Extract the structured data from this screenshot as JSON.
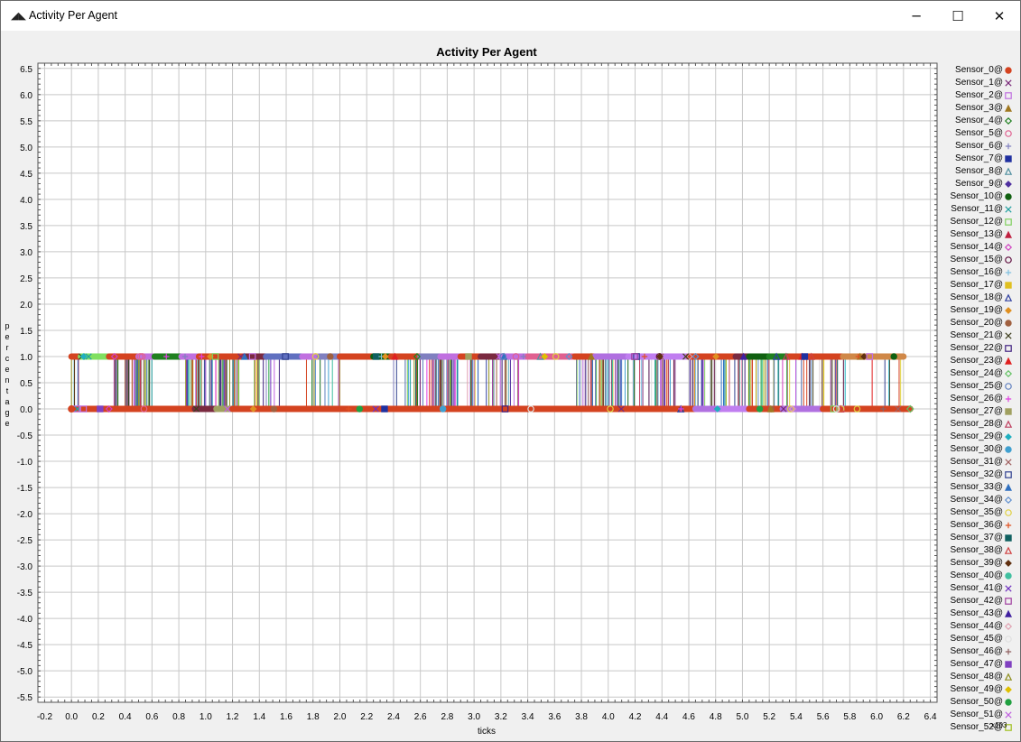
{
  "window": {
    "title": "Activity Per Agent",
    "app_icon": "chart-app-icon",
    "buttons": {
      "minimize": "─",
      "maximize": "☐",
      "close": "✕"
    }
  },
  "chart_data": {
    "type": "line",
    "title": "Activity Per Agent",
    "xlabel": "ticks",
    "ylabel": "percentage",
    "xlim": [
      -0.25,
      6.45
    ],
    "ylim": [
      -5.6,
      6.6
    ],
    "x_ticks": [
      "-0.2",
      "0.0",
      "0.2",
      "0.4",
      "0.6",
      "0.8",
      "1.0",
      "1.2",
      "1.4",
      "1.6",
      "1.8",
      "2.0",
      "2.2",
      "2.4",
      "2.6",
      "2.8",
      "3.0",
      "3.2",
      "3.4",
      "3.6",
      "3.8",
      "4.0",
      "4.2",
      "4.4",
      "4.6",
      "4.8",
      "5.0",
      "5.2",
      "5.4",
      "5.6",
      "5.8",
      "6.0",
      "6.2",
      "6.4"
    ],
    "y_ticks": [
      "6.5",
      "6.0",
      "5.5",
      "5.0",
      "4.5",
      "4.0",
      "3.5",
      "3.0",
      "2.5",
      "2.0",
      "1.5",
      "1.0",
      "0.5",
      "0.0",
      "-0.5",
      "-1.0",
      "-1.5",
      "-2.0",
      "-2.5",
      "-3.0",
      "-3.5",
      "-4.0",
      "-4.5",
      "-5.0",
      "-5.5"
    ],
    "x_multiplier_label": "x10",
    "x_multiplier_exponent": "3",
    "grid": true,
    "legend_position": "right",
    "value_levels": [
      0.0,
      1.0
    ],
    "x_range_active": [
      0.0,
      6.25
    ],
    "series": [
      {
        "name": "Sensor_0@",
        "color": "#d44320",
        "marker": "circle"
      },
      {
        "name": "Sensor_1@",
        "color": "#7a2a7a",
        "marker": "x"
      },
      {
        "name": "Sensor_2@",
        "color": "#c070e0",
        "marker": "square-open"
      },
      {
        "name": "Sensor_3@",
        "color": "#a07820",
        "marker": "triangle"
      },
      {
        "name": "Sensor_4@",
        "color": "#208020",
        "marker": "diamond-open"
      },
      {
        "name": "Sensor_5@",
        "color": "#e06090",
        "marker": "circle-open"
      },
      {
        "name": "Sensor_6@",
        "color": "#8080c0",
        "marker": "plus"
      },
      {
        "name": "Sensor_7@",
        "color": "#2030a0",
        "marker": "square"
      },
      {
        "name": "Sensor_8@",
        "color": "#5090a0",
        "marker": "triangle-open"
      },
      {
        "name": "Sensor_9@",
        "color": "#5030a0",
        "marker": "diamond"
      },
      {
        "name": "Sensor_10@",
        "color": "#106010",
        "marker": "circle"
      },
      {
        "name": "Sensor_11@",
        "color": "#20a0a0",
        "marker": "x"
      },
      {
        "name": "Sensor_12@",
        "color": "#80d060",
        "marker": "square-open"
      },
      {
        "name": "Sensor_13@",
        "color": "#c02040",
        "marker": "triangle"
      },
      {
        "name": "Sensor_14@",
        "color": "#d040c0",
        "marker": "diamond-open"
      },
      {
        "name": "Sensor_15@",
        "color": "#601040",
        "marker": "circle-open"
      },
      {
        "name": "Sensor_16@",
        "color": "#80c0e0",
        "marker": "plus"
      },
      {
        "name": "Sensor_17@",
        "color": "#e0c020",
        "marker": "square"
      },
      {
        "name": "Sensor_18@",
        "color": "#3040a0",
        "marker": "triangle-open"
      },
      {
        "name": "Sensor_19@",
        "color": "#e09020",
        "marker": "diamond"
      },
      {
        "name": "Sensor_20@",
        "color": "#a06040",
        "marker": "circle"
      },
      {
        "name": "Sensor_21@",
        "color": "#404020",
        "marker": "x"
      },
      {
        "name": "Sensor_22@",
        "color": "#402080",
        "marker": "square-open"
      },
      {
        "name": "Sensor_23@",
        "color": "#e02020",
        "marker": "triangle"
      },
      {
        "name": "Sensor_24@",
        "color": "#60c060",
        "marker": "diamond-open"
      },
      {
        "name": "Sensor_25@",
        "color": "#6080c0",
        "marker": "circle-open"
      },
      {
        "name": "Sensor_26@",
        "color": "#e040e0",
        "marker": "plus"
      },
      {
        "name": "Sensor_27@",
        "color": "#a0a060",
        "marker": "square"
      },
      {
        "name": "Sensor_28@",
        "color": "#c04060",
        "marker": "triangle-open"
      },
      {
        "name": "Sensor_29@",
        "color": "#20b0c0",
        "marker": "diamond"
      },
      {
        "name": "Sensor_30@",
        "color": "#40a0d0",
        "marker": "circle"
      },
      {
        "name": "Sensor_31@",
        "color": "#a06060",
        "marker": "x"
      },
      {
        "name": "Sensor_32@",
        "color": "#304090",
        "marker": "square-open"
      },
      {
        "name": "Sensor_33@",
        "color": "#3070c0",
        "marker": "triangle"
      },
      {
        "name": "Sensor_34@",
        "color": "#6090d0",
        "marker": "diamond-open"
      },
      {
        "name": "Sensor_35@",
        "color": "#e0d040",
        "marker": "circle-open"
      },
      {
        "name": "Sensor_36@",
        "color": "#e05020",
        "marker": "plus"
      },
      {
        "name": "Sensor_37@",
        "color": "#106060",
        "marker": "square"
      },
      {
        "name": "Sensor_38@",
        "color": "#d04040",
        "marker": "triangle-open"
      },
      {
        "name": "Sensor_39@",
        "color": "#603010",
        "marker": "diamond"
      },
      {
        "name": "Sensor_40@",
        "color": "#40c0a0",
        "marker": "circle"
      },
      {
        "name": "Sensor_41@",
        "color": "#7030c0",
        "marker": "x"
      },
      {
        "name": "Sensor_42@",
        "color": "#a040a0",
        "marker": "square-open"
      },
      {
        "name": "Sensor_43@",
        "color": "#4020a0",
        "marker": "triangle"
      },
      {
        "name": "Sensor_44@",
        "color": "#e0a0b0",
        "marker": "diamond-open"
      },
      {
        "name": "Sensor_45@",
        "color": "#e0e0e0",
        "marker": "circle-open"
      },
      {
        "name": "Sensor_46@",
        "color": "#906060",
        "marker": "plus"
      },
      {
        "name": "Sensor_47@",
        "color": "#8040c0",
        "marker": "square"
      },
      {
        "name": "Sensor_48@",
        "color": "#909020",
        "marker": "triangle-open"
      },
      {
        "name": "Sensor_49@",
        "color": "#e0c000",
        "marker": "diamond"
      },
      {
        "name": "Sensor_50@",
        "color": "#20a040",
        "marker": "circle"
      },
      {
        "name": "Sensor_51@",
        "color": "#c060e0",
        "marker": "x"
      },
      {
        "name": "Sensor_52@",
        "color": "#a0c020",
        "marker": "square-open"
      }
    ],
    "top_line_segments": [
      {
        "x0": 0.0,
        "x1": 0.07,
        "color": "#d44320"
      },
      {
        "x0": 0.07,
        "x1": 0.28,
        "color": "#80e060"
      },
      {
        "x0": 0.28,
        "x1": 0.5,
        "color": "#d44320"
      },
      {
        "x0": 0.5,
        "x1": 0.62,
        "color": "#c070e0"
      },
      {
        "x0": 0.62,
        "x1": 0.82,
        "color": "#208020"
      },
      {
        "x0": 0.82,
        "x1": 0.95,
        "color": "#c070e0"
      },
      {
        "x0": 0.95,
        "x1": 1.3,
        "color": "#d44320"
      },
      {
        "x0": 1.3,
        "x1": 1.45,
        "color": "#7a2a40"
      },
      {
        "x0": 1.45,
        "x1": 1.72,
        "color": "#6070c0"
      },
      {
        "x0": 1.72,
        "x1": 1.85,
        "color": "#c070e0"
      },
      {
        "x0": 1.85,
        "x1": 2.0,
        "color": "#8080c0"
      },
      {
        "x0": 2.0,
        "x1": 2.25,
        "color": "#d44320"
      },
      {
        "x0": 2.25,
        "x1": 2.38,
        "color": "#106010"
      },
      {
        "x0": 2.38,
        "x1": 2.6,
        "color": "#d44320"
      },
      {
        "x0": 2.6,
        "x1": 2.75,
        "color": "#8080c0"
      },
      {
        "x0": 2.75,
        "x1": 2.9,
        "color": "#c070e0"
      },
      {
        "x0": 2.9,
        "x1": 3.05,
        "color": "#d44320"
      },
      {
        "x0": 3.05,
        "x1": 3.2,
        "color": "#7a2a40"
      },
      {
        "x0": 3.2,
        "x1": 3.4,
        "color": "#c070e0"
      },
      {
        "x0": 3.4,
        "x1": 3.75,
        "color": "#e06090"
      },
      {
        "x0": 3.75,
        "x1": 3.9,
        "color": "#d44320"
      },
      {
        "x0": 3.9,
        "x1": 4.15,
        "color": "#b070e0"
      },
      {
        "x0": 4.15,
        "x1": 4.6,
        "color": "#c07ef0"
      },
      {
        "x0": 4.6,
        "x1": 4.95,
        "color": "#d44320"
      },
      {
        "x0": 4.95,
        "x1": 5.05,
        "color": "#7a2a40"
      },
      {
        "x0": 5.05,
        "x1": 5.2,
        "color": "#106010"
      },
      {
        "x0": 5.2,
        "x1": 5.35,
        "color": "#208020"
      },
      {
        "x0": 5.35,
        "x1": 5.75,
        "color": "#d44320"
      },
      {
        "x0": 5.75,
        "x1": 6.2,
        "color": "#d08848"
      }
    ],
    "bottom_line_segments": [
      {
        "x0": 0.0,
        "x1": 0.92,
        "color": "#d44320"
      },
      {
        "x0": 0.92,
        "x1": 1.08,
        "color": "#7a2a40"
      },
      {
        "x0": 1.08,
        "x1": 1.2,
        "color": "#a0a060"
      },
      {
        "x0": 1.2,
        "x1": 4.65,
        "color": "#d44320"
      },
      {
        "x0": 4.65,
        "x1": 4.85,
        "color": "#b070e0"
      },
      {
        "x0": 4.85,
        "x1": 5.05,
        "color": "#c07ef0"
      },
      {
        "x0": 5.05,
        "x1": 5.3,
        "color": "#d44320"
      },
      {
        "x0": 5.3,
        "x1": 5.6,
        "color": "#b070e0"
      },
      {
        "x0": 5.6,
        "x1": 6.25,
        "color": "#d44320"
      }
    ]
  }
}
